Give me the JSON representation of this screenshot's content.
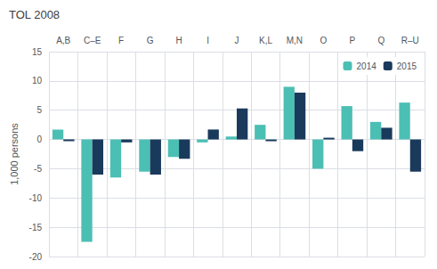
{
  "chart_data": {
    "type": "bar",
    "title": "TOL 2008",
    "ylabel": "1,000 persons",
    "categories": [
      "A,B",
      "C–E",
      "F",
      "G",
      "H",
      "I",
      "J",
      "K,L",
      "M,N",
      "O",
      "P",
      "Q",
      "R–U"
    ],
    "series": [
      {
        "name": "2014",
        "color": "#4CBFB4",
        "values": [
          1.7,
          -17.5,
          -6.5,
          -5.5,
          -3.0,
          -0.5,
          0.5,
          2.5,
          9.0,
          -5.0,
          5.7,
          3.0,
          6.3
        ]
      },
      {
        "name": "2015",
        "color": "#1A3A5C",
        "values": [
          -0.3,
          -6.0,
          -0.5,
          -6.0,
          -3.3,
          1.7,
          5.3,
          -0.3,
          8.0,
          0.3,
          -2.0,
          2.0,
          -5.5
        ]
      }
    ],
    "ylim": [
      -20,
      15
    ],
    "yticks": [
      -20,
      -15,
      -10,
      -5,
      0,
      5,
      10,
      15
    ],
    "grid": true,
    "legend": "upper right"
  }
}
